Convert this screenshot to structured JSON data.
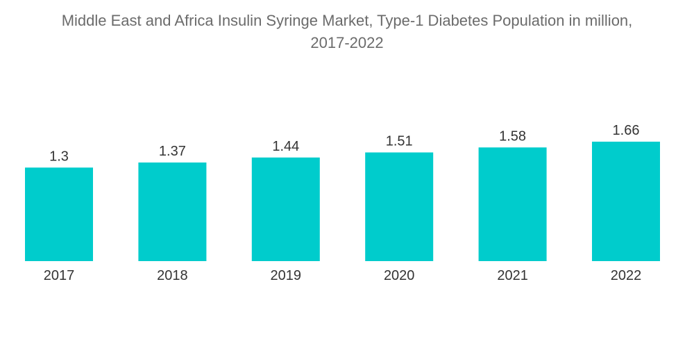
{
  "chart_data": {
    "type": "bar",
    "title_line1": "Middle East and Africa Insulin Syringe Market, Type-1 Diabetes Population in million,",
    "title_line2": "2017-2022",
    "categories": [
      "2017",
      "2018",
      "2019",
      "2020",
      "2021",
      "2022"
    ],
    "values": [
      1.3,
      1.37,
      1.44,
      1.51,
      1.58,
      1.66
    ],
    "data_labels": [
      "1.3",
      "1.37",
      "1.44",
      "1.51",
      "1.58",
      "1.66"
    ],
    "xlabel": "",
    "ylabel": "",
    "ylim": [
      0,
      1.66
    ],
    "grid": false,
    "legend": "none",
    "bar_color": "#00cccc"
  }
}
